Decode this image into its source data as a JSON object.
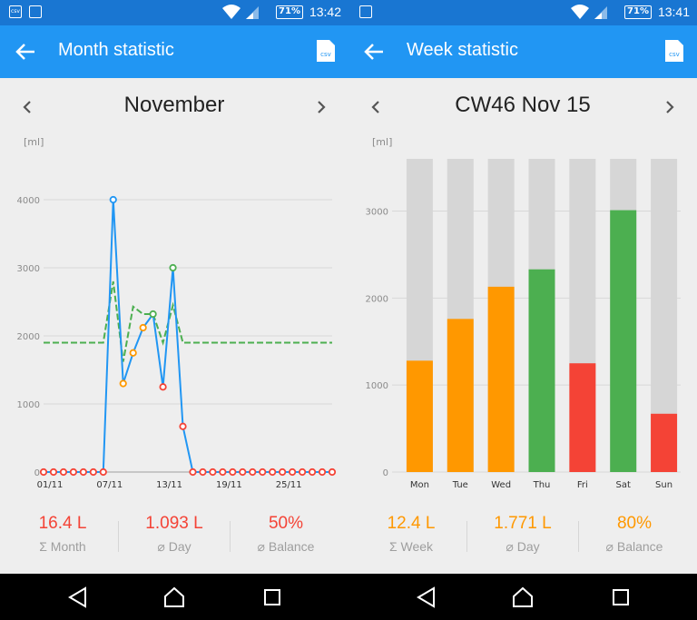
{
  "status_left": {
    "time": "13:42",
    "battery": "71%",
    "notif_icons": [
      "csv-file-icon",
      "image-icon"
    ],
    "icons": [
      "wifi-icon",
      "signal-icon",
      "battery-icon"
    ]
  },
  "status_right": {
    "time": "13:41",
    "battery": "71%",
    "notif_icons": [
      "image-icon"
    ],
    "icons": [
      "wifi-icon",
      "signal-icon",
      "battery-icon"
    ]
  },
  "colors": {
    "statusbar": "#1976d2",
    "appbar": "#2196f3",
    "orange": "#ff9800",
    "green": "#4caf50",
    "red": "#f44336",
    "blue": "#2196f3",
    "bar_bg": "#d6d6d6"
  },
  "month": {
    "title": "Month statistic",
    "period": "November",
    "unit": "[ml]",
    "stats": [
      {
        "value": "16.4 L",
        "label": "Σ Month",
        "color": "#f44336"
      },
      {
        "value": "1.093 L",
        "label": "⌀ Day",
        "color": "#f44336"
      },
      {
        "value": "50%",
        "label": "⌀ Balance",
        "color": "#f44336"
      }
    ]
  },
  "week": {
    "title": "Week statistic",
    "period": "CW46 Nov 15",
    "unit": "[ml]",
    "stats": [
      {
        "value": "12.4 L",
        "label": "Σ Week",
        "color": "#ff9800"
      },
      {
        "value": "1.771 L",
        "label": "⌀ Day",
        "color": "#ff9800"
      },
      {
        "value": "80%",
        "label": "⌀ Balance",
        "color": "#ff9800"
      }
    ]
  },
  "chart_data": [
    {
      "type": "line",
      "x_tick_labels": [
        "01/11",
        "07/11",
        "13/11",
        "19/11",
        "25/11"
      ],
      "y_ticks": [
        0,
        1000,
        2000,
        3000,
        4000
      ],
      "ylim": [
        0,
        4800
      ],
      "grid": true,
      "series": [
        {
          "values": [
            0,
            0,
            0,
            0,
            0,
            0,
            0,
            4000,
            1300,
            1750,
            2120,
            2320,
            1250,
            3000,
            670,
            0,
            0,
            0,
            0,
            0,
            0,
            0,
            0,
            0,
            0,
            0,
            0,
            0,
            0,
            0
          ],
          "point_colors": [
            "#f44336",
            "#f44336",
            "#f44336",
            "#f44336",
            "#f44336",
            "#f44336",
            "#f44336",
            "#2196f3",
            "#ff9800",
            "#ff9800",
            "#ff9800",
            "#4caf50",
            "#f44336",
            "#4caf50",
            "#f44336",
            "#f44336",
            "#f44336",
            "#f44336",
            "#f44336",
            "#f44336",
            "#f44336",
            "#f44336",
            "#f44336",
            "#f44336",
            "#f44336",
            "#f44336",
            "#f44336",
            "#f44336",
            "#f44336",
            "#f44336"
          ],
          "color": "#2196f3"
        },
        {
          "values": [
            1900,
            1900,
            1900,
            1900,
            1900,
            1900,
            1900,
            2800,
            1620,
            2430,
            2320,
            2320,
            1900,
            2450,
            1900,
            1900,
            1900,
            1900,
            1900,
            1900,
            1900,
            1900,
            1900,
            1900,
            1900,
            1900,
            1900,
            1900,
            1900,
            1900
          ],
          "color": "#4caf50",
          "dashed": true
        }
      ]
    },
    {
      "type": "bar",
      "categories": [
        "Mon",
        "Tue",
        "Wed",
        "Thu",
        "Fri",
        "Sat",
        "Sun"
      ],
      "values": [
        1280,
        1760,
        2130,
        2330,
        1250,
        3010,
        670
      ],
      "bar_colors": [
        "#ff9800",
        "#ff9800",
        "#ff9800",
        "#4caf50",
        "#f44336",
        "#4caf50",
        "#f44336"
      ],
      "background_max": 3600,
      "y_ticks": [
        0,
        1000,
        2000,
        3000
      ],
      "ylim": [
        0,
        3600
      ],
      "grid": true
    }
  ]
}
